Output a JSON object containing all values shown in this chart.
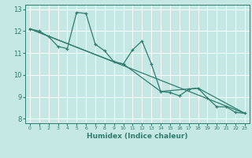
{
  "xlabel": "Humidex (Indice chaleur)",
  "bg_color": "#c5e8e5",
  "grid_color": "#ffffff",
  "line_color": "#2e7d6e",
  "xlim": [
    -0.5,
    23.5
  ],
  "ylim": [
    7.8,
    13.2
  ],
  "yticks": [
    8,
    9,
    10,
    11,
    12,
    13
  ],
  "xticks": [
    0,
    1,
    2,
    3,
    4,
    5,
    6,
    7,
    8,
    9,
    10,
    11,
    12,
    13,
    14,
    15,
    16,
    17,
    18,
    19,
    20,
    21,
    22,
    23
  ],
  "series1_x": [
    0,
    1,
    2,
    3,
    4,
    5,
    6,
    7,
    8,
    9,
    10,
    11,
    12,
    13,
    14,
    15,
    16,
    17,
    18,
    19,
    20,
    21,
    22,
    23
  ],
  "series1_y": [
    12.1,
    12.0,
    11.75,
    11.3,
    11.2,
    12.85,
    12.8,
    11.4,
    11.1,
    10.6,
    10.5,
    11.15,
    11.55,
    10.5,
    9.25,
    9.2,
    9.05,
    9.35,
    9.4,
    8.95,
    8.55,
    8.55,
    8.3,
    8.25
  ],
  "series3_x": [
    0,
    23
  ],
  "series3_y": [
    12.1,
    8.25
  ],
  "series4_x": [
    0,
    9,
    10,
    14,
    18,
    23
  ],
  "series4_y": [
    12.1,
    10.6,
    10.5,
    9.25,
    9.4,
    8.25
  ],
  "line_width": 0.9,
  "marker_size": 2.5
}
